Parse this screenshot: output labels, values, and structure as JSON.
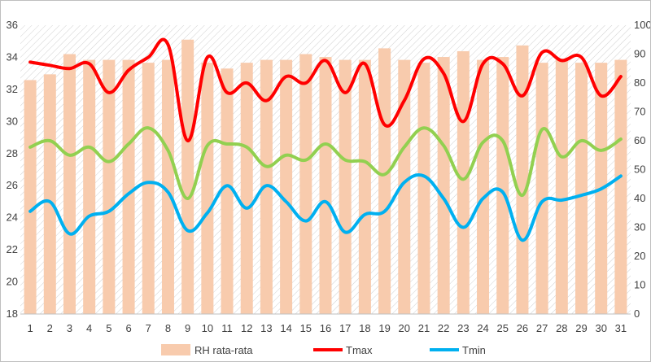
{
  "chart_data": {
    "type": "bar",
    "categories": [
      "1",
      "2",
      "3",
      "4",
      "5",
      "6",
      "7",
      "8",
      "9",
      "10",
      "11",
      "12",
      "13",
      "14",
      "15",
      "16",
      "17",
      "18",
      "19",
      "20",
      "21",
      "22",
      "23",
      "24",
      "25",
      "26",
      "27",
      "28",
      "29",
      "30",
      "31"
    ],
    "series": [
      {
        "name": "RH rata-rata",
        "kind": "bar",
        "axis": "right",
        "color": "#f8cbad",
        "values": [
          81,
          83,
          90,
          88,
          88,
          88,
          87,
          88,
          95,
          87,
          85,
          87,
          88,
          88,
          90,
          89,
          88,
          88,
          92,
          88,
          87,
          89,
          91,
          88,
          89,
          93,
          87,
          88,
          87,
          87,
          88
        ]
      },
      {
        "name": "Tmax",
        "kind": "line",
        "axis": "left",
        "color": "#ff0000",
        "values": [
          33.7,
          33.5,
          33.3,
          33.6,
          31.8,
          33.2,
          34.0,
          34.8,
          28.8,
          34.0,
          31.8,
          32.4,
          31.3,
          32.8,
          32.4,
          33.8,
          31.8,
          33.6,
          29.8,
          31.3,
          33.9,
          33.0,
          30.0,
          33.6,
          33.6,
          31.6,
          34.3,
          33.8,
          34.0,
          31.6,
          32.8
        ]
      },
      {
        "name": "Tmin",
        "kind": "line",
        "axis": "left",
        "color": "#00b0f0",
        "values": [
          24.4,
          25.0,
          23.0,
          24.1,
          24.4,
          25.5,
          26.2,
          25.6,
          23.2,
          24.3,
          26.0,
          24.6,
          26.0,
          25.0,
          23.8,
          25.0,
          23.1,
          24.2,
          24.4,
          26.2,
          26.6,
          25.2,
          23.4,
          25.2,
          25.6,
          22.6,
          25.0,
          25.1,
          25.4,
          25.8,
          26.6
        ]
      },
      {
        "name": "",
        "kind": "line",
        "axis": "left",
        "color": "#92d050",
        "values": [
          28.4,
          28.8,
          27.9,
          28.4,
          27.5,
          28.6,
          29.6,
          28.2,
          25.2,
          28.5,
          28.6,
          28.4,
          27.2,
          27.9,
          27.6,
          28.6,
          27.6,
          27.5,
          26.7,
          28.4,
          29.6,
          28.5,
          26.4,
          28.7,
          28.8,
          25.4,
          29.5,
          27.8,
          28.8,
          28.2,
          28.9
        ]
      }
    ],
    "y_left": {
      "min": 18,
      "max": 36,
      "step": 2
    },
    "y_right": {
      "min": 0,
      "max": 100,
      "step": 10
    },
    "grid": false,
    "background_pattern": "diagonal-hatch",
    "legend": {
      "placement": "bottom",
      "entries": [
        "RH rata-rata",
        "Tmax",
        "Tmin"
      ]
    }
  }
}
